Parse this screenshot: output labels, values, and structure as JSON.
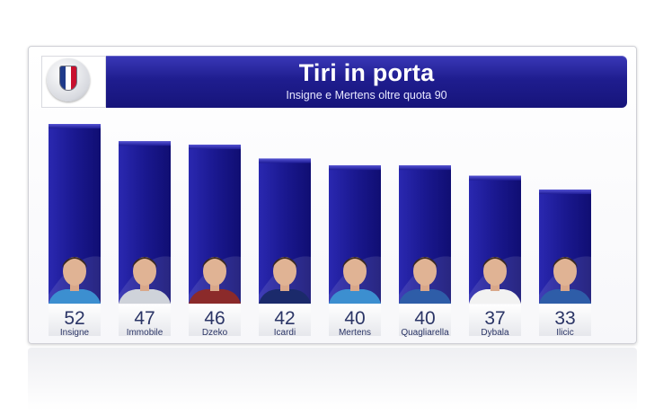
{
  "header": {
    "title": "Tiri in porta",
    "subtitle": "Insigne e Mertens oltre quota 90",
    "logo_icon": "serie-a-tim-logo"
  },
  "colors": {
    "bar": "#1e1c96",
    "bar_light": "#3b39c4",
    "title_bar": "#1f1d8f"
  },
  "chart_data": {
    "type": "bar",
    "title": "Tiri in porta",
    "subtitle": "Insigne e Mertens oltre quota 90",
    "categories": [
      "Insigne",
      "Immobile",
      "Dzeko",
      "Icardi",
      "Mertens",
      "Quagliarella",
      "Dybala",
      "Ilicic"
    ],
    "values": [
      52,
      47,
      46,
      42,
      40,
      40,
      37,
      33
    ],
    "xlabel": "",
    "ylabel": "",
    "ylim": [
      0,
      52
    ],
    "grid": false,
    "legend": "none",
    "player_photo_icons": [
      "player-photo-icon",
      "player-photo-icon",
      "player-photo-icon",
      "player-photo-icon",
      "player-photo-icon",
      "player-photo-icon",
      "player-photo-icon",
      "player-photo-icon"
    ],
    "kit_colors": [
      "#3c8fd0",
      "#cfd3da",
      "#8b2a2a",
      "#1b2a6b",
      "#3c8fd0",
      "#2e5da8",
      "#f2f2f2",
      "#2e5da8"
    ]
  }
}
